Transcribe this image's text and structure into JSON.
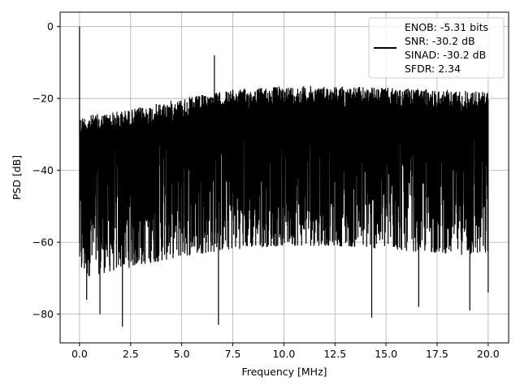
{
  "chart_data": {
    "type": "line",
    "title": "",
    "xlabel": "Frequency [MHz]",
    "ylabel": "PSD [dB]",
    "xlim": [
      -0.95,
      21.0
    ],
    "ylim": [
      -88.0,
      4.0
    ],
    "xticks": [
      0.0,
      2.5,
      5.0,
      7.5,
      10.0,
      12.5,
      15.0,
      17.5,
      20.0
    ],
    "xtick_labels": [
      "0.0",
      "2.5",
      "5.0",
      "7.5",
      "10.0",
      "12.5",
      "15.0",
      "17.5",
      "20.0"
    ],
    "yticks": [
      0,
      -20,
      -40,
      -60,
      -80
    ],
    "ytick_labels": [
      "0",
      "−20",
      "−40",
      "−60",
      "−80"
    ],
    "grid": true,
    "legend": {
      "placement": "top-right",
      "entries": [
        "ENOB: -5.31 bits",
        "SNR: -30.2 dB",
        "SINAD: -30.2 dB",
        "SFDR: 2.34"
      ]
    },
    "series": [
      {
        "color": "#000000",
        "x_range": [
          0.0,
          20.0
        ],
        "noise_floor": {
          "upper_envelope": [
            [
              0.0,
              -25
            ],
            [
              2.5,
              -23
            ],
            [
              5.0,
              -20
            ],
            [
              7.5,
              -17.5
            ],
            [
              10.0,
              -16.5
            ],
            [
              12.5,
              -16.5
            ],
            [
              15.0,
              -17
            ],
            [
              17.5,
              -17.5
            ],
            [
              20.0,
              -18
            ]
          ],
          "lower_envelope": [
            [
              0.0,
              -70
            ],
            [
              2.5,
              -67
            ],
            [
              5.0,
              -64
            ],
            [
              7.5,
              -62
            ],
            [
              10.0,
              -61
            ],
            [
              12.5,
              -61
            ],
            [
              15.0,
              -62
            ],
            [
              17.5,
              -63
            ],
            [
              20.0,
              -64
            ]
          ],
          "deep_dips": [
            [
              0.35,
              -76
            ],
            [
              1.0,
              -80
            ],
            [
              2.1,
              -83.5
            ],
            [
              6.8,
              -83
            ],
            [
              14.3,
              -81
            ],
            [
              16.6,
              -78
            ],
            [
              19.1,
              -79
            ],
            [
              20.0,
              -74
            ]
          ]
        },
        "peaks": [
          {
            "x": 0.0,
            "y": 0
          },
          {
            "x": 6.6,
            "y": -8
          }
        ]
      }
    ]
  }
}
